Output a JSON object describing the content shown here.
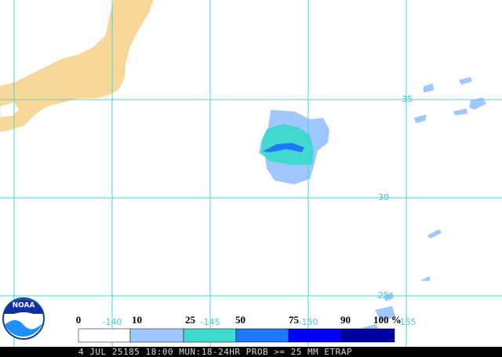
{
  "map": {
    "lat_labels": [
      "35",
      "30",
      "25"
    ],
    "lon_labels": [
      "-140",
      "-145",
      "-150",
      "-155"
    ]
  },
  "legend": {
    "labels": [
      "0",
      "10",
      "25",
      "50",
      "75",
      "90",
      "100 %"
    ],
    "colors": [
      "#ffffff",
      "#a0c8ff",
      "#40d8d0",
      "#1e78ff",
      "#0000ff",
      "#0000a0"
    ]
  },
  "logo": {
    "text": "NOAA"
  },
  "footer": {
    "caption": "4 JUL 25185 18:00 MUN:18-24HR PROB >= 25 MM ETRAP"
  }
}
